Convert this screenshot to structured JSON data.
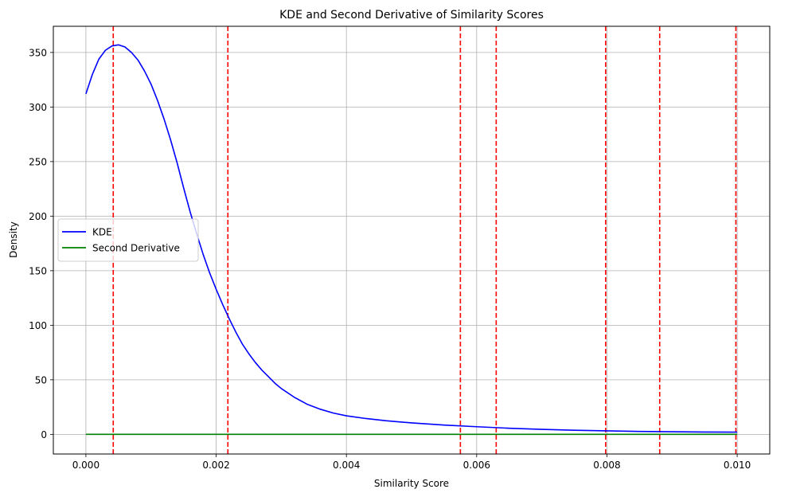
{
  "chart_data": {
    "type": "line",
    "title": "KDE and Second Derivative of Similarity Scores",
    "xlabel": "Similarity Score",
    "ylabel": "Density",
    "xlim": [
      -0.0005,
      0.0105
    ],
    "ylim": [
      -18,
      374
    ],
    "xticks": [
      0.0,
      0.002,
      0.004,
      0.006,
      0.008,
      0.01
    ],
    "xtick_labels": [
      "0.000",
      "0.002",
      "0.004",
      "0.006",
      "0.008",
      "0.010"
    ],
    "yticks": [
      0,
      50,
      100,
      150,
      200,
      250,
      300,
      350
    ],
    "ytick_labels": [
      "0",
      "50",
      "100",
      "150",
      "200",
      "250",
      "300",
      "350"
    ],
    "grid": true,
    "legend_position": "center-left",
    "series": [
      {
        "name": "KDE",
        "color": "#0000ff",
        "x": [
          0.0,
          0.0001,
          0.0002,
          0.0003,
          0.0004,
          0.0005,
          0.0006,
          0.0007,
          0.0008,
          0.0009,
          0.001,
          0.0011,
          0.0012,
          0.0013,
          0.0014,
          0.0015,
          0.0016,
          0.0017,
          0.0018,
          0.0019,
          0.002,
          0.0021,
          0.0022,
          0.0023,
          0.0024,
          0.0025,
          0.0026,
          0.0027,
          0.0028,
          0.0029,
          0.003,
          0.0032,
          0.0034,
          0.0036,
          0.0038,
          0.004,
          0.0043,
          0.0046,
          0.005,
          0.0055,
          0.006,
          0.0065,
          0.007,
          0.0075,
          0.008,
          0.0085,
          0.009,
          0.0095,
          0.01
        ],
        "y": [
          312,
          330,
          344,
          352,
          356,
          357,
          355,
          350,
          343,
          333,
          321,
          306,
          289,
          270,
          249,
          226,
          204,
          184,
          165,
          148,
          133,
          119,
          106,
          94,
          83,
          74,
          66,
          59,
          53,
          47,
          42,
          34,
          27.5,
          23,
          19.5,
          17,
          14.5,
          12.5,
          10.5,
          8.5,
          7,
          5.6,
          4.6,
          3.8,
          3.2,
          2.7,
          2.4,
          2.1,
          2.0
        ]
      },
      {
        "name": "Second Derivative",
        "color": "#008000",
        "x": [
          0.0,
          0.01
        ],
        "y": [
          0,
          0
        ]
      }
    ],
    "vlines": {
      "color": "#ff0000",
      "style": "dashed",
      "x": [
        0.00042,
        0.00218,
        0.00575,
        0.0063,
        0.00798,
        0.00881,
        0.00998
      ]
    }
  }
}
